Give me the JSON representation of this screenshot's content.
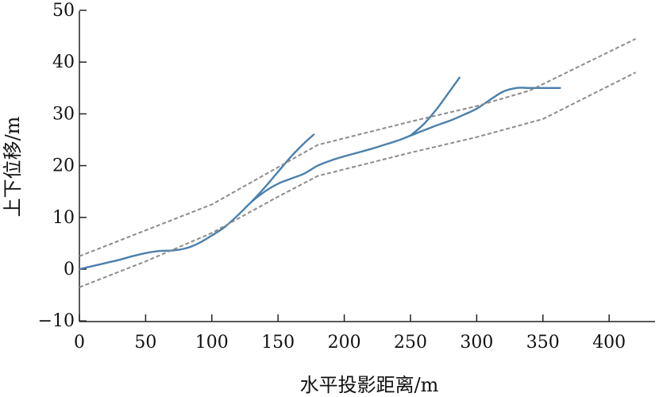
{
  "chart_data": {
    "type": "line",
    "title": "",
    "xlabel": "水平投影距离/m",
    "ylabel": "上下位移/m",
    "xlim": [
      0,
      420
    ],
    "ylim": [
      -10,
      50
    ],
    "x_ticks": [
      0,
      50,
      100,
      150,
      200,
      250,
      300,
      350,
      400
    ],
    "y_ticks": [
      -10,
      0,
      10,
      20,
      30,
      40,
      50
    ],
    "grid": false,
    "legend": "none",
    "colors": {
      "curve": "#4a7fae",
      "bound": "#8c8c8c",
      "axis": "#222222"
    },
    "series": [
      {
        "style": "solid",
        "x": [
          0,
          10,
          20,
          30,
          40,
          50,
          60,
          70,
          80,
          90,
          100,
          110,
          120,
          130,
          140,
          150,
          160,
          170,
          180,
          190,
          200,
          210,
          220,
          230,
          240,
          250,
          260,
          270,
          280,
          290,
          300,
          310,
          320,
          330,
          340,
          350,
          363
        ],
        "y": [
          0,
          0.6,
          1.2,
          1.8,
          2.5,
          3.1,
          3.5,
          3.6,
          4.0,
          5.0,
          6.5,
          8.2,
          10.5,
          13.0,
          15.0,
          16.5,
          17.5,
          18.5,
          20.0,
          21.0,
          21.8,
          22.5,
          23.2,
          24.0,
          24.8,
          25.8,
          26.8,
          27.8,
          28.7,
          29.8,
          31.0,
          32.7,
          34.3,
          35.0,
          35.0,
          35.0,
          35.0
        ]
      },
      {
        "style": "solid",
        "x": [
          130,
          140,
          150,
          160,
          170,
          177
        ],
        "y": [
          13.0,
          15.8,
          18.8,
          21.8,
          24.4,
          26.0
        ]
      },
      {
        "style": "solid",
        "x": [
          250,
          260,
          270,
          280,
          287
        ],
        "y": [
          25.8,
          28.0,
          31.0,
          34.5,
          37.0
        ]
      },
      {
        "style": "dashed",
        "x": [
          0,
          100,
          180,
          250,
          300,
          340,
          420
        ],
        "y": [
          2.5,
          12.5,
          24.0,
          28.5,
          31.5,
          34.5,
          44.5
        ]
      },
      {
        "style": "dashed",
        "x": [
          0,
          50,
          100,
          150,
          180,
          250,
          300,
          350,
          420
        ],
        "y": [
          -3.5,
          1.5,
          7.0,
          14.0,
          18.0,
          22.5,
          25.5,
          29.0,
          38.0
        ]
      }
    ]
  }
}
